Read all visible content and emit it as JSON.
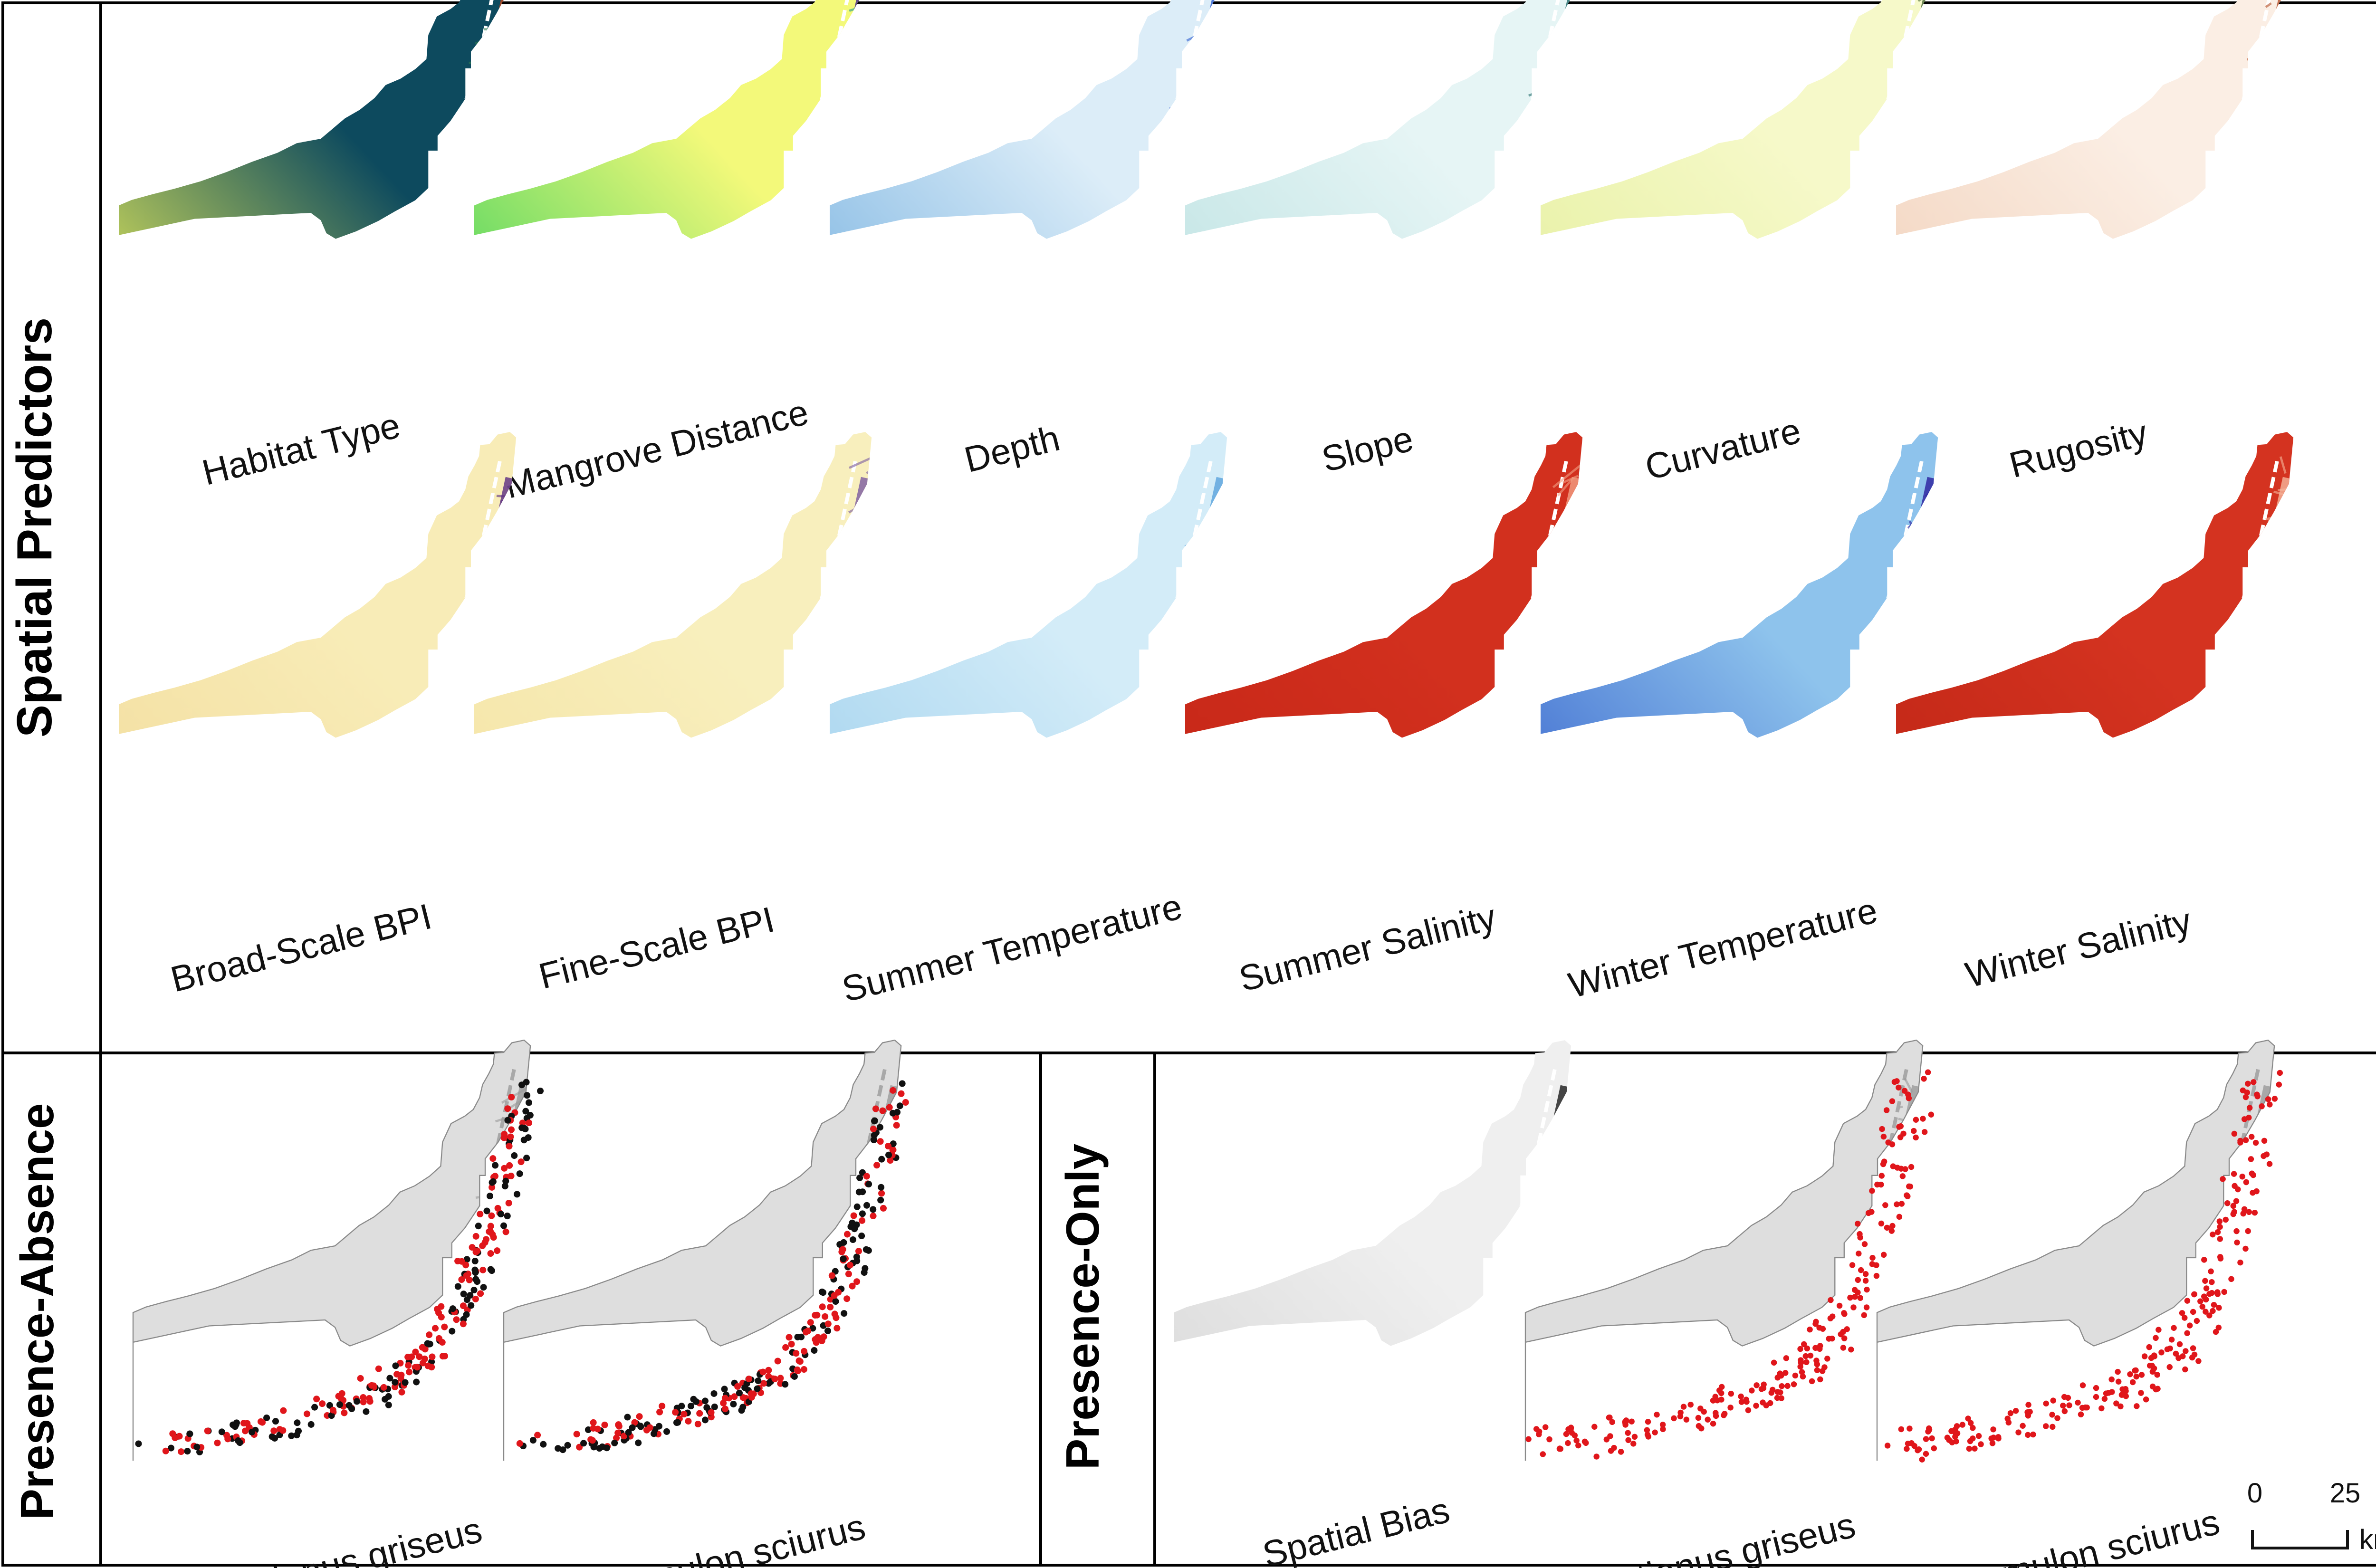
{
  "sections": {
    "spatial_predictors": "Spatial Predictors",
    "presence_absence": "Presence-Absence",
    "presence_only": "Presence-Only"
  },
  "predictors": [
    {
      "label": "Habitat Type",
      "ramp": "habitat",
      "colors": [
        "#0d4a5e",
        "#e6ec5a",
        "#2e7d4f",
        "#c2491e"
      ]
    },
    {
      "label": "Mangrove Distance",
      "ramp": "viridis",
      "colors": [
        "#f3f97a",
        "#49d35f",
        "#1f9a8a",
        "#3b1f8c"
      ]
    },
    {
      "label": "Depth",
      "ramp": "blue",
      "colors": [
        "#dcedf8",
        "#7fb6e2",
        "#2f5ed1"
      ]
    },
    {
      "label": "Slope",
      "ramp": "teal",
      "colors": [
        "#e6f5f5",
        "#bfe3e3",
        "#216b6b"
      ]
    },
    {
      "label": "Curvature",
      "ramp": "yellow",
      "colors": [
        "#f6f9c9",
        "#e6f0a2",
        "#4e6b3a"
      ]
    },
    {
      "label": "Rugosity",
      "ramp": "peach",
      "colors": [
        "#fbeee4",
        "#f2d3bd",
        "#b5502a"
      ]
    },
    {
      "label": "Broad-Scale BPI",
      "ramp": "bpi",
      "colors": [
        "#f8ecb7",
        "#f3dea0",
        "#5a2d82"
      ]
    },
    {
      "label": "Fine-Scale BPI",
      "ramp": "bpi2",
      "colors": [
        "#f8efbd",
        "#f5e4a6",
        "#7a5aa0"
      ]
    },
    {
      "label": "Summer Temperature",
      "ramp": "lightblue",
      "colors": [
        "#d3ecf8",
        "#a5d3ee",
        "#5aa2dc"
      ]
    },
    {
      "label": "Summer Salinity",
      "ramp": "red",
      "colors": [
        "#d2301e",
        "#c52617",
        "#f2a083"
      ]
    },
    {
      "label": "Winter Temperature",
      "ramp": "bluedeep",
      "colors": [
        "#8ec3ec",
        "#3d69cf",
        "#2a1f9e"
      ]
    },
    {
      "label": "Winter Salinity",
      "ramp": "red2",
      "colors": [
        "#d43320",
        "#c02616",
        "#f5b59b"
      ]
    }
  ],
  "presence_absence": [
    {
      "species": "Lutjanus griseus"
    },
    {
      "species": "Haemulon sciurus"
    }
  ],
  "presence_only": [
    {
      "label": "Spatial Bias"
    },
    {
      "species": "Lutjanus griseus"
    },
    {
      "species": "Haemulon sciurus"
    }
  ],
  "scale_bar": {
    "ticks": [
      "0",
      "25"
    ],
    "unit": "km"
  },
  "colors": {
    "presence": "#e0161b",
    "absence": "#111111",
    "land": "#dedede",
    "keys": "#9a9a9a",
    "border": "#000000"
  }
}
